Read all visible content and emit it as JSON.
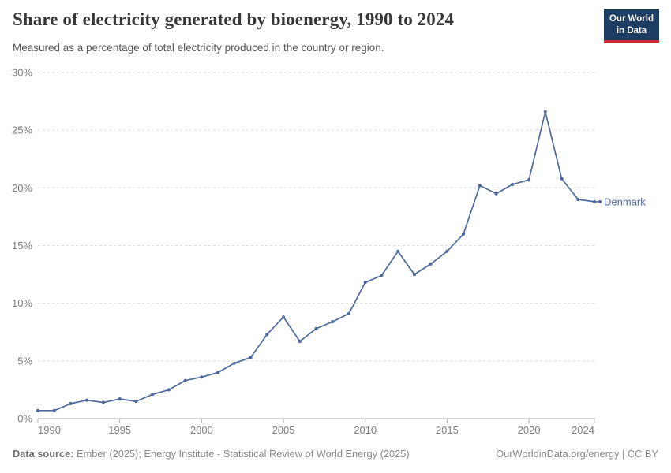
{
  "header": {
    "title": "Share of electricity generated by bioenergy, 1990 to 2024",
    "subtitle": "Measured as a percentage of total electricity produced in the country or region.",
    "logo": {
      "line1": "Our World",
      "line2": "in Data",
      "bg_color": "#1d3d63",
      "accent_color": "#cd2834"
    }
  },
  "chart_data": {
    "type": "line",
    "title": "Share of electricity generated by bioenergy, 1990 to 2024",
    "xlabel": "",
    "ylabel": "",
    "ylim": [
      0,
      30
    ],
    "y_ticks": [
      0,
      5,
      10,
      15,
      20,
      25,
      30
    ],
    "y_tick_suffix": "%",
    "x_ticks": [
      1990,
      1995,
      2000,
      2005,
      2010,
      2015,
      2020,
      2024
    ],
    "grid": "horizontal-dashed",
    "legend_position": "end-of-line",
    "x": [
      1990,
      1991,
      1992,
      1993,
      1994,
      1995,
      1996,
      1997,
      1998,
      1999,
      2000,
      2001,
      2002,
      2003,
      2004,
      2005,
      2006,
      2007,
      2008,
      2009,
      2010,
      2011,
      2012,
      2013,
      2014,
      2015,
      2016,
      2017,
      2018,
      2019,
      2020,
      2021,
      2022,
      2023,
      2024
    ],
    "series": [
      {
        "name": "Denmark",
        "color": "#4c6aa0",
        "values": [
          0.7,
          0.7,
          1.3,
          1.6,
          1.4,
          1.7,
          1.5,
          2.1,
          2.5,
          3.3,
          3.6,
          4.0,
          4.8,
          5.3,
          7.3,
          8.8,
          6.7,
          7.8,
          8.4,
          9.1,
          11.8,
          12.4,
          14.5,
          12.5,
          13.4,
          14.5,
          16.0,
          20.2,
          19.5,
          20.3,
          20.7,
          26.6,
          20.8,
          19.0,
          18.8
        ]
      }
    ]
  },
  "footer": {
    "source_label": "Data source:",
    "source_text": " Ember (2025); Energy Institute - Statistical Review of World Energy (2025)",
    "rights": "OurWorldinData.org/energy | CC BY"
  }
}
